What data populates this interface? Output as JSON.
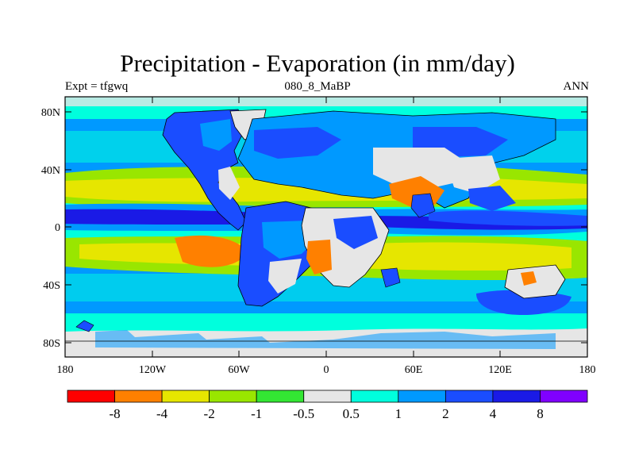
{
  "title": "Precipitation - Evaporation (in mm/day)",
  "experiment_label": "Expt = tfgwq",
  "case_label": "080_8_MaBP",
  "season_label": "ANN",
  "y_ticks": [
    "80N",
    "40N",
    "0",
    "40S",
    "80S"
  ],
  "x_ticks": [
    "180",
    "120W",
    "60W",
    "0",
    "60E",
    "120E",
    "180"
  ],
  "colorbar": {
    "labels": [
      "-8",
      "-4",
      "-2",
      "-1",
      "-0.5",
      "0.5",
      "1",
      "2",
      "4",
      "8"
    ],
    "colors": [
      "#ff0000",
      "#ff8000",
      "#e6e600",
      "#99e600",
      "#33e633",
      "#e6e6e6",
      "#00ffdd",
      "#0099ff",
      "#1a4dff",
      "#1a1ae6",
      "#8000ff"
    ]
  },
  "chart_data": {
    "type": "heatmap",
    "title": "Precipitation - Evaporation (in mm/day)",
    "units": "mm/day",
    "xlim": [
      -180,
      180
    ],
    "ylim": [
      -90,
      90
    ],
    "levels": [
      -8,
      -4,
      -2,
      -1,
      -0.5,
      0.5,
      1,
      2,
      4,
      8
    ]
  }
}
